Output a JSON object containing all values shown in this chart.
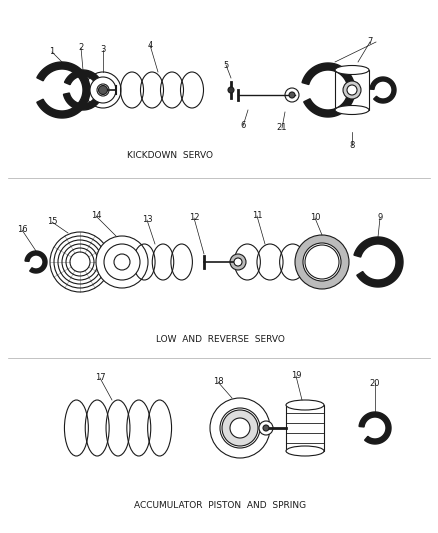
{
  "bg_color": "#ffffff",
  "line_color": "#1a1a1a",
  "section_labels": {
    "kickdown": "KICKDOWN  SERVO",
    "low_reverse": "LOW  AND  REVERSE  SERVO",
    "accumulator": "ACCUMULATOR  PISTON  AND  SPRING"
  },
  "label_fontsize": 6.5,
  "number_fontsize": 6,
  "figsize": [
    4.38,
    5.33
  ],
  "dpi": 100
}
